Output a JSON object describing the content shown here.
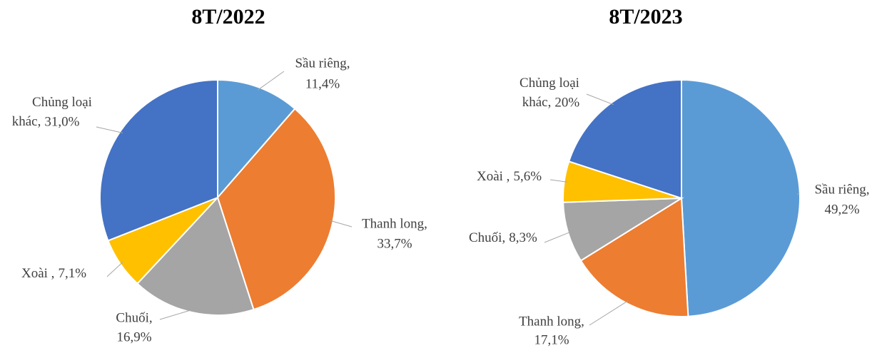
{
  "chart_data": [
    {
      "type": "pie",
      "title": "8T/2022",
      "categories": [
        "Sầu riêng,",
        "Thanh long,",
        "Chuối,",
        "Xoài ,",
        "Chủng loại khác,"
      ],
      "values": [
        11.4,
        33.7,
        16.9,
        7.1,
        31.0
      ],
      "value_labels": [
        "11,4%",
        "33,7%",
        "16,9%",
        "7,1%",
        "31,0%"
      ],
      "colors": [
        "#5b9bd5",
        "#ed7d31",
        "#a5a5a5",
        "#ffc000",
        "#4472c4"
      ]
    },
    {
      "type": "pie",
      "title": "8T/2023",
      "categories": [
        "Sầu riêng,",
        "Thanh long,",
        "Chuối,",
        "Xoài ,",
        "Chủng loại khác,"
      ],
      "values": [
        49.2,
        17.1,
        8.3,
        5.6,
        20
      ],
      "value_labels": [
        "49,2%",
        "17,1%",
        "8,3%",
        "5,6%",
        "20%"
      ],
      "colors": [
        "#5b9bd5",
        "#ed7d31",
        "#a5a5a5",
        "#ffc000",
        "#4472c4"
      ]
    }
  ]
}
